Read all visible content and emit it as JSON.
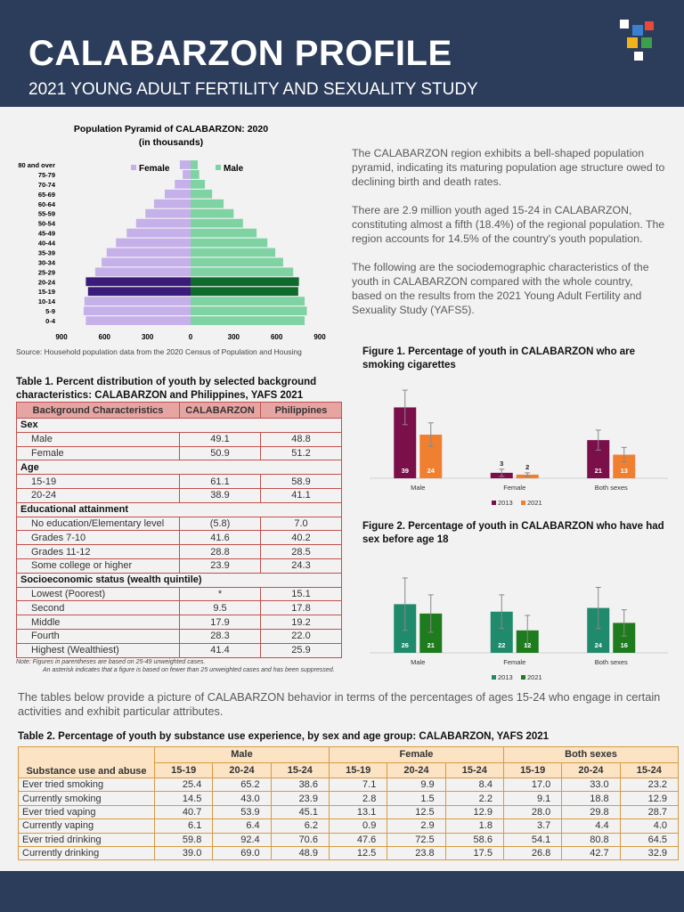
{
  "header": {
    "title": "CALABARZON PROFILE",
    "subtitle": "2021 YOUNG ADULT FERTILITY AND SEXUALITY STUDY"
  },
  "intro": [
    "The CALABARZON region exhibits a bell-shaped population pyramid, indicating its maturing population age structure owed to declining birth and death rates.",
    "There are 2.9 million youth aged 15-24 in CALABARZON, constituting almost a fifth (18.4%) of the regional population. The region accounts for 14.5% of the country's youth population.",
    "The following are the sociodemographic characteristics of the youth in CALABARZON compared with the whole country, based on the results from the 2021 Young Adult Fertility and Sexuality Study (YAFS5)."
  ],
  "middle_text": "The tables below provide a picture of CALABARZON behavior in terms of the percentages of ages 15-24 who engage in certain activities and exhibit particular attributes.",
  "chart_data": [
    {
      "type": "population_pyramid",
      "title": "Population Pyramid of CALABARZON: 2020",
      "subtitle": "(in thousands)",
      "source": "Source: Household population data from the 2020 Census of Population and Housing",
      "categories": [
        "80 and over",
        "75-79",
        "70-74",
        "65-69",
        "60-64",
        "55-59",
        "50-54",
        "45-49",
        "40-44",
        "35-39",
        "30-34",
        "25-29",
        "20-24",
        "15-19",
        "10-14",
        "5-9",
        "0-4"
      ],
      "highlight_categories": [
        "20-24",
        "15-19"
      ],
      "series": [
        {
          "name": "Female",
          "color": "#c6b0ea",
          "highlight_color": "#3b1b7a",
          "values": [
            75,
            55,
            110,
            180,
            255,
            315,
            380,
            445,
            520,
            585,
            620,
            665,
            730,
            715,
            740,
            745,
            730
          ]
        },
        {
          "name": "Male",
          "color": "#7fd3a2",
          "highlight_color": "#0f6b2c",
          "values": [
            50,
            60,
            100,
            150,
            230,
            300,
            365,
            460,
            535,
            590,
            645,
            715,
            755,
            750,
            795,
            810,
            795
          ]
        }
      ],
      "xlim": [
        0,
        900
      ],
      "xticks": [
        0,
        300,
        600,
        900
      ]
    },
    {
      "type": "bar",
      "title": "Figure 1. Percentage of youth in CALABARZON who are smoking cigarettes",
      "categories": [
        "Male",
        "Female",
        "Both sexes"
      ],
      "ylim": [
        0,
        50
      ],
      "series": [
        {
          "name": "2013",
          "color": "#7a0f4a",
          "values": [
            39,
            3,
            21
          ],
          "errors": [
            9.5,
            2,
            5.5
          ]
        },
        {
          "name": "2021",
          "color": "#f08030",
          "values": [
            24,
            2,
            13
          ],
          "errors": [
            6.5,
            1,
            4
          ]
        }
      ]
    },
    {
      "type": "bar",
      "title": "Figure 2. Percentage of youth in CALABARZON who have had sex before age 18",
      "categories": [
        "Male",
        "Female",
        "Both sexes"
      ],
      "ylim": [
        0,
        50
      ],
      "series": [
        {
          "name": "2013",
          "color": "#1f8a6c",
          "values": [
            26,
            22,
            24
          ],
          "errors": [
            14,
            9,
            11
          ]
        },
        {
          "name": "2021",
          "color": "#1e7b1e",
          "values": [
            21,
            12,
            16
          ],
          "errors": [
            10,
            8,
            7
          ]
        }
      ]
    }
  ],
  "table1": {
    "title": "Table 1. Percent distribution of youth by selected background characteristics: CALABARZON and Philippines, YAFS 2021",
    "columns": [
      "Background Characteristics",
      "CALABARZON",
      "Philippines"
    ],
    "sections": [
      {
        "heading": "Sex",
        "rows": [
          [
            "Male",
            "49.1",
            "48.8"
          ],
          [
            "Female",
            "50.9",
            "51.2"
          ]
        ]
      },
      {
        "heading": "Age",
        "rows": [
          [
            "15-19",
            "61.1",
            "58.9"
          ],
          [
            "20-24",
            "38.9",
            "41.1"
          ]
        ]
      },
      {
        "heading": "Educational attainment",
        "rows": [
          [
            "No education/Elementary level",
            "(5.8)",
            "7.0"
          ],
          [
            "Grades 7-10",
            "41.6",
            "40.2"
          ],
          [
            "Grades 11-12",
            "28.8",
            "28.5"
          ],
          [
            "Some college or higher",
            "23.9",
            "24.3"
          ]
        ]
      },
      {
        "heading": "Socioeconomic status (wealth quintile)",
        "rows": [
          [
            "Lowest (Poorest)",
            "*",
            "15.1"
          ],
          [
            "Second",
            "9.5",
            "17.8"
          ],
          [
            "Middle",
            "17.9",
            "19.2"
          ],
          [
            "Fourth",
            "28.3",
            "22.0"
          ],
          [
            "Highest (Wealthiest)",
            "41.4",
            "25.9"
          ]
        ]
      }
    ],
    "notes": [
      "Note: Figures in parentheses are based on 25-49 unweighted cases.",
      "An asterisk indicates that a figure is based on fewer than 25 unweighted cases and has been suppressed."
    ]
  },
  "table2": {
    "title": "Table 2. Percentage of youth by substance use experience, by sex and age group: CALABARZON, YAFS 2021",
    "row_header": "Substance use and abuse",
    "groups": [
      "Male",
      "Female",
      "Both sexes"
    ],
    "age_groups": [
      "15-19",
      "20-24",
      "15-24"
    ],
    "rows": [
      [
        "Ever tried smoking",
        "25.4",
        "65.2",
        "38.6",
        "7.1",
        "9.9",
        "8.4",
        "17.0",
        "33.0",
        "23.2"
      ],
      [
        "Currently smoking",
        "14.5",
        "43.0",
        "23.9",
        "2.8",
        "1.5",
        "2.2",
        "9.1",
        "18.8",
        "12.9"
      ],
      [
        "Ever tried vaping",
        "40.7",
        "53.9",
        "45.1",
        "13.1",
        "12.5",
        "12.9",
        "28.0",
        "29.8",
        "28.7"
      ],
      [
        "Currently vaping",
        "6.1",
        "6.4",
        "6.2",
        "0.9",
        "2.9",
        "1.8",
        "3.7",
        "4.4",
        "4.0"
      ],
      [
        "Ever tried drinking",
        "59.8",
        "92.4",
        "70.6",
        "47.6",
        "72.5",
        "58.6",
        "54.1",
        "80.8",
        "64.5"
      ],
      [
        "Currently drinking",
        "39.0",
        "69.0",
        "48.9",
        "12.5",
        "23.8",
        "17.5",
        "26.8",
        "42.7",
        "32.9"
      ]
    ]
  }
}
